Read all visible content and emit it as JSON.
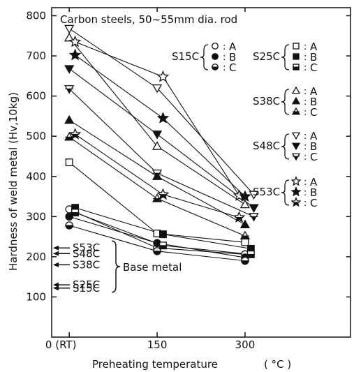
{
  "chart_data": {
    "type": "scatter",
    "title": "Carbon steels, 50~55mm dia. rod",
    "xlabel": "Preheating temperature",
    "xunit": "( °C )",
    "ylabel": "Hardness of weld metal (Hv,10kg)",
    "xlim": [
      -30,
      480
    ],
    "ylim": [
      0,
      820
    ],
    "x_ticks": [
      {
        "value": 0,
        "label": "0 (RT)"
      },
      {
        "value": 150,
        "label": "150"
      },
      {
        "value": 300,
        "label": "300"
      }
    ],
    "y_ticks": [
      100,
      200,
      300,
      400,
      500,
      600,
      700,
      800
    ],
    "grid": false,
    "series": [
      {
        "name": "S15C",
        "marker": "circle",
        "variants": [
          {
            "label": "A",
            "fill": "open",
            "points": [
              [
                0,
                318
              ],
              [
                150,
                222
              ],
              [
                300,
                206
              ]
            ]
          },
          {
            "label": "B",
            "fill": "solid",
            "points": [
              [
                0,
                300
              ],
              [
                150,
                234
              ],
              [
                300,
                198
              ]
            ]
          },
          {
            "label": "C",
            "fill": "half",
            "points": [
              [
                0,
                278
              ],
              [
                150,
                214
              ],
              [
                300,
                190
              ]
            ]
          }
        ]
      },
      {
        "name": "S25C",
        "marker": "square",
        "variants": [
          {
            "label": "A",
            "fill": "open",
            "points": [
              [
                0,
                435
              ],
              [
                150,
                258
              ],
              [
                300,
                236
              ]
            ]
          },
          {
            "label": "B",
            "fill": "solid",
            "points": [
              [
                10,
                322
              ],
              [
                160,
                256
              ],
              [
                310,
                220
              ]
            ]
          },
          {
            "label": "C",
            "fill": "half",
            "points": [
              [
                10,
                310
              ],
              [
                160,
                228
              ],
              [
                310,
                206
              ]
            ]
          }
        ]
      },
      {
        "name": "S38C",
        "marker": "triangle-up",
        "variants": [
          {
            "label": "A",
            "fill": "open",
            "points": [
              [
                0,
                745
              ],
              [
                150,
                475
              ],
              [
                300,
                330
              ]
            ]
          },
          {
            "label": "B",
            "fill": "solid",
            "points": [
              [
                0,
                540
              ],
              [
                150,
                400
              ],
              [
                300,
                280
              ]
            ]
          },
          {
            "label": "C",
            "fill": "half",
            "points": [
              [
                0,
                498
              ],
              [
                150,
                345
              ],
              [
                300,
                252
              ]
            ]
          }
        ]
      },
      {
        "name": "S48C",
        "marker": "triangle-down",
        "variants": [
          {
            "label": "A",
            "fill": "open",
            "points": [
              [
                0,
                768
              ],
              [
                150,
                620
              ],
              [
                315,
                355
              ]
            ]
          },
          {
            "label": "B",
            "fill": "solid",
            "points": [
              [
                0,
                668
              ],
              [
                150,
                505
              ],
              [
                315,
                322
              ]
            ]
          },
          {
            "label": "C",
            "fill": "half",
            "points": [
              [
                0,
                618
              ],
              [
                150,
                408
              ],
              [
                315,
                300
              ]
            ]
          }
        ]
      },
      {
        "name": "S53C",
        "marker": "star",
        "variants": [
          {
            "label": "A",
            "fill": "open",
            "points": [
              [
                10,
                735
              ],
              [
                160,
                648
              ],
              [
                290,
                352
              ]
            ]
          },
          {
            "label": "B",
            "fill": "solid",
            "points": [
              [
                10,
                702
              ],
              [
                160,
                545
              ],
              [
                300,
                350
              ]
            ]
          },
          {
            "label": "C",
            "fill": "half",
            "points": [
              [
                10,
                505
              ],
              [
                160,
                355
              ],
              [
                290,
                298
              ]
            ]
          }
        ]
      }
    ],
    "base_metal": {
      "label": "Base metal",
      "items": [
        {
          "name": "S53C",
          "value": 222
        },
        {
          "name": "S48C",
          "value": 208
        },
        {
          "name": "S38C",
          "value": 180
        },
        {
          "name": "S25C",
          "value": 130
        },
        {
          "name": "S15C",
          "value": 122
        }
      ]
    }
  }
}
